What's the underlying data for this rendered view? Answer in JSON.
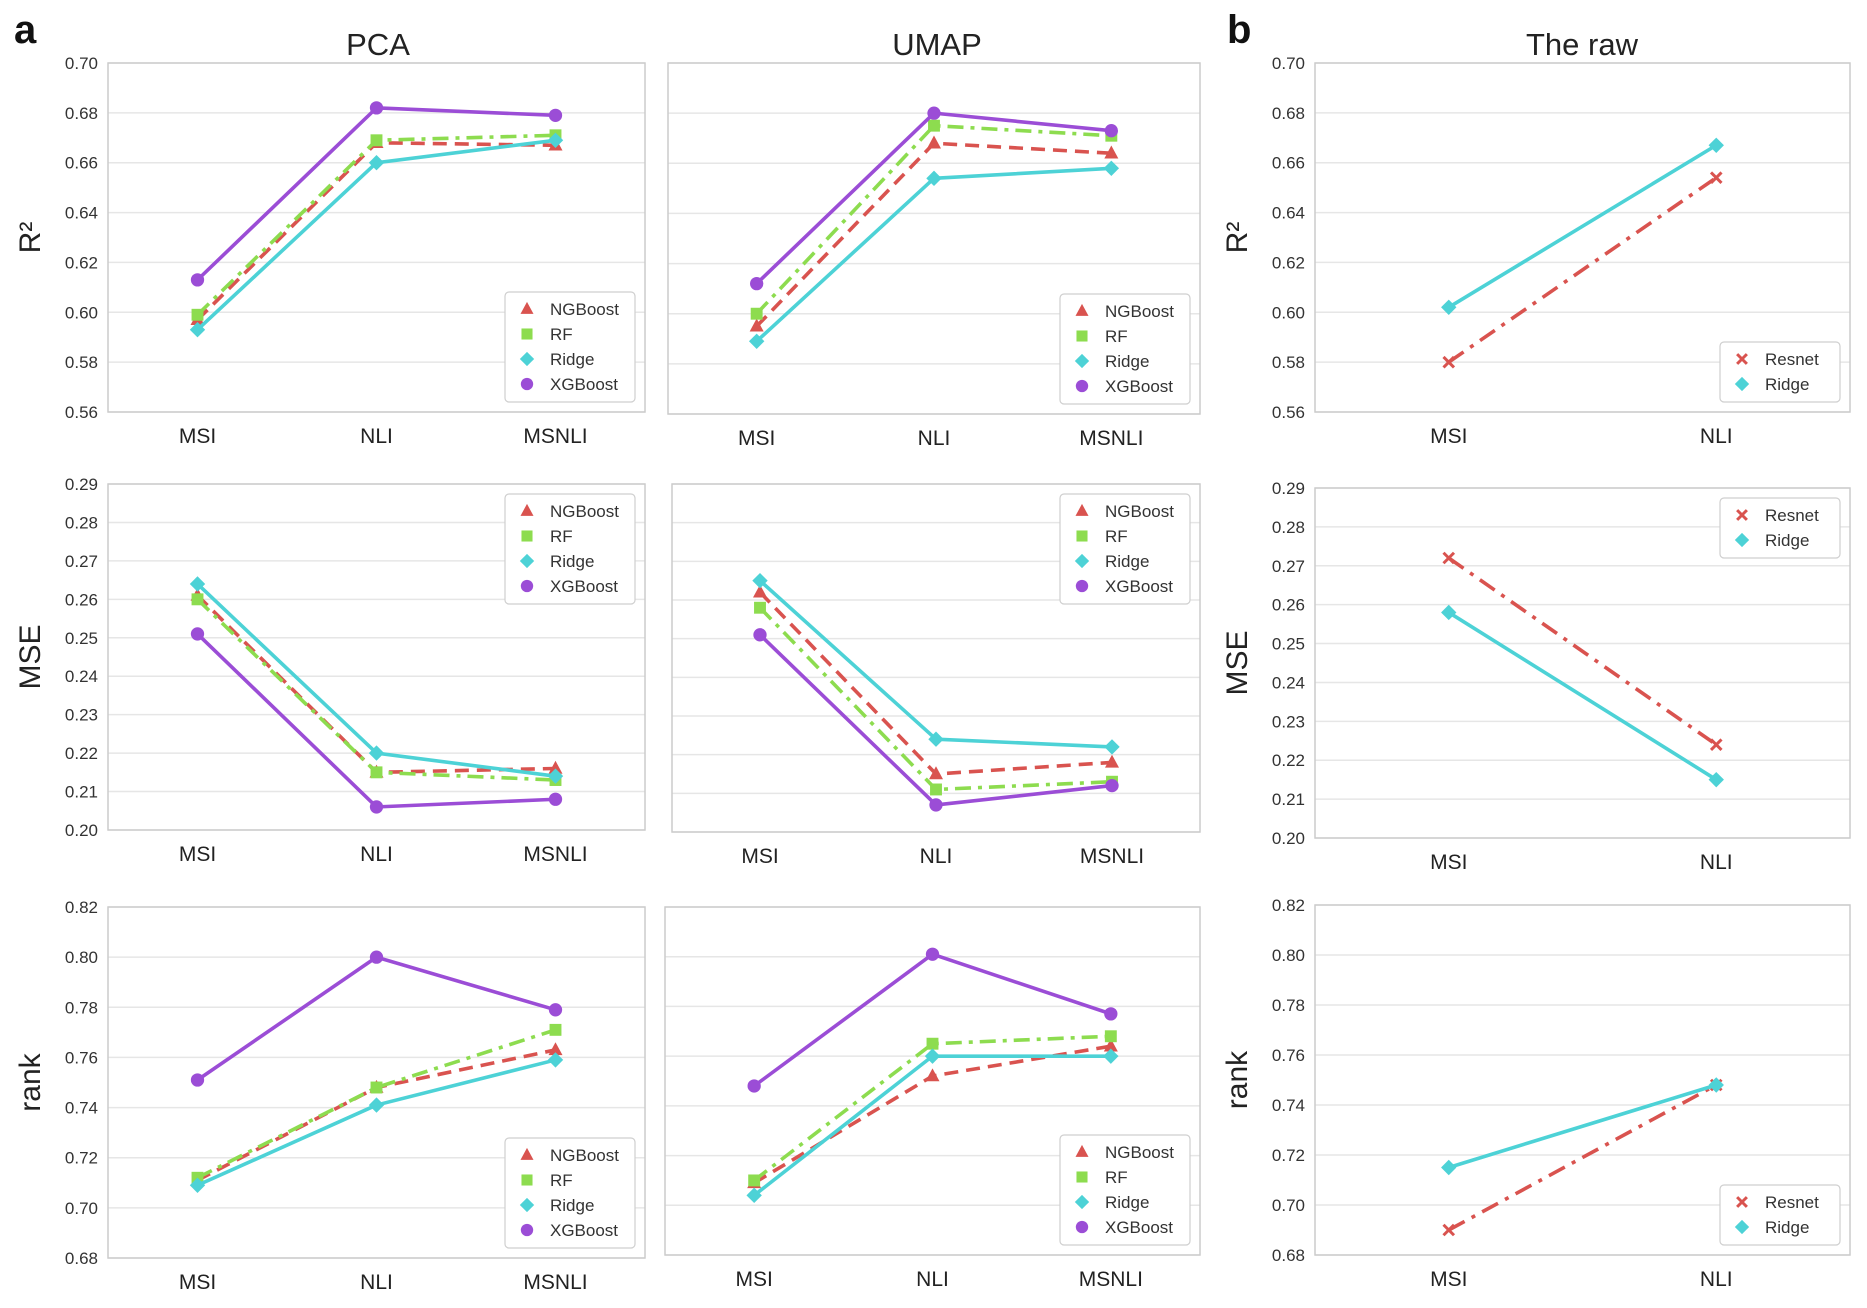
{
  "panel_labels": [
    "a",
    "b"
  ],
  "column_titles": [
    "PCA",
    "UMAP",
    "The raw"
  ],
  "colors": {
    "NGBoost": "#d9534f",
    "RF": "#8ddc4f",
    "Ridge": "#4dd2d6",
    "XGBoost": "#9b4dd6",
    "Resnet": "#d9534f",
    "grid": "#e6e6e6",
    "frame": "#cccccc"
  },
  "chart_data": [
    {
      "type": "line",
      "panel": "a",
      "column": "PCA",
      "ylabel": "R²",
      "categories": [
        "MSI",
        "NLI",
        "MSNLI"
      ],
      "yticks": [
        "0.56",
        "0.58",
        "0.60",
        "0.62",
        "0.64",
        "0.66",
        "0.68",
        "0.70"
      ],
      "ylim": [
        0.56,
        0.7
      ],
      "legend": "bottom-right",
      "grid": true,
      "series": [
        {
          "name": "NGBoost",
          "values": [
            0.597,
            0.668,
            0.667
          ]
        },
        {
          "name": "RF",
          "values": [
            0.599,
            0.669,
            0.671
          ]
        },
        {
          "name": "Ridge",
          "values": [
            0.593,
            0.66,
            0.669
          ]
        },
        {
          "name": "XGBoost",
          "values": [
            0.613,
            0.682,
            0.679
          ]
        }
      ]
    },
    {
      "type": "line",
      "panel": "a",
      "column": "UMAP",
      "ylabel": "",
      "categories": [
        "MSI",
        "NLI",
        "MSNLI"
      ],
      "yticks": [],
      "ylim": [
        0.56,
        0.7
      ],
      "legend": "bottom-right",
      "grid": true,
      "series": [
        {
          "name": "NGBoost",
          "values": [
            0.595,
            0.668,
            0.664
          ]
        },
        {
          "name": "RF",
          "values": [
            0.6,
            0.675,
            0.671
          ]
        },
        {
          "name": "Ridge",
          "values": [
            0.589,
            0.654,
            0.658
          ]
        },
        {
          "name": "XGBoost",
          "values": [
            0.612,
            0.68,
            0.673
          ]
        }
      ]
    },
    {
      "type": "line",
      "panel": "b",
      "column": "The raw",
      "ylabel": "R²",
      "categories": [
        "MSI",
        "NLI"
      ],
      "yticks": [
        "0.56",
        "0.58",
        "0.60",
        "0.62",
        "0.64",
        "0.66",
        "0.68",
        "0.70"
      ],
      "ylim": [
        0.56,
        0.7
      ],
      "legend": "bottom-right",
      "grid": true,
      "series": [
        {
          "name": "Resnet",
          "values": [
            0.58,
            0.654
          ]
        },
        {
          "name": "Ridge",
          "values": [
            0.602,
            0.667
          ]
        }
      ]
    },
    {
      "type": "line",
      "panel": "a",
      "column": "PCA",
      "ylabel": "MSE",
      "categories": [
        "MSI",
        "NLI",
        "MSNLI"
      ],
      "yticks": [
        "0.20",
        "0.21",
        "0.22",
        "0.23",
        "0.24",
        "0.25",
        "0.26",
        "0.27",
        "0.28",
        "0.29"
      ],
      "ylim": [
        0.2,
        0.29
      ],
      "legend": "top-right",
      "grid": true,
      "series": [
        {
          "name": "NGBoost",
          "values": [
            0.261,
            0.215,
            0.216
          ]
        },
        {
          "name": "RF",
          "values": [
            0.26,
            0.215,
            0.213
          ]
        },
        {
          "name": "Ridge",
          "values": [
            0.264,
            0.22,
            0.214
          ]
        },
        {
          "name": "XGBoost",
          "values": [
            0.251,
            0.206,
            0.208
          ]
        }
      ]
    },
    {
      "type": "line",
      "panel": "a",
      "column": "UMAP",
      "ylabel": "",
      "categories": [
        "MSI",
        "NLI",
        "MSNLI"
      ],
      "yticks": [],
      "ylim": [
        0.2,
        0.29
      ],
      "legend": "top-right",
      "grid": true,
      "series": [
        {
          "name": "NGBoost",
          "values": [
            0.262,
            0.215,
            0.218
          ]
        },
        {
          "name": "RF",
          "values": [
            0.258,
            0.211,
            0.213
          ]
        },
        {
          "name": "Ridge",
          "values": [
            0.265,
            0.224,
            0.222
          ]
        },
        {
          "name": "XGBoost",
          "values": [
            0.251,
            0.207,
            0.212
          ]
        }
      ]
    },
    {
      "type": "line",
      "panel": "b",
      "column": "The raw",
      "ylabel": "MSE",
      "categories": [
        "MSI",
        "NLI"
      ],
      "yticks": [
        "0.20",
        "0.21",
        "0.22",
        "0.23",
        "0.24",
        "0.25",
        "0.26",
        "0.27",
        "0.28",
        "0.29"
      ],
      "ylim": [
        0.2,
        0.29
      ],
      "legend": "top-right",
      "grid": true,
      "series": [
        {
          "name": "Resnet",
          "values": [
            0.272,
            0.224
          ]
        },
        {
          "name": "Ridge",
          "values": [
            0.258,
            0.215
          ]
        }
      ]
    },
    {
      "type": "line",
      "panel": "a",
      "column": "PCA",
      "ylabel": "rank",
      "categories": [
        "MSI",
        "NLI",
        "MSNLI"
      ],
      "yticks": [
        "0.68",
        "0.70",
        "0.72",
        "0.74",
        "0.76",
        "0.78",
        "0.80",
        "0.82"
      ],
      "ylim": [
        0.68,
        0.82
      ],
      "legend": "bottom-right",
      "grid": true,
      "series": [
        {
          "name": "NGBoost",
          "values": [
            0.711,
            0.748,
            0.763
          ]
        },
        {
          "name": "RF",
          "values": [
            0.712,
            0.748,
            0.771
          ]
        },
        {
          "name": "Ridge",
          "values": [
            0.709,
            0.741,
            0.759
          ]
        },
        {
          "name": "XGBoost",
          "values": [
            0.751,
            0.8,
            0.779
          ]
        }
      ]
    },
    {
      "type": "line",
      "panel": "a",
      "column": "UMAP",
      "ylabel": "",
      "categories": [
        "MSI",
        "NLI",
        "MSNLI"
      ],
      "yticks": [],
      "ylim": [
        0.68,
        0.82
      ],
      "legend": "bottom-right",
      "grid": true,
      "series": [
        {
          "name": "NGBoost",
          "values": [
            0.709,
            0.752,
            0.764
          ]
        },
        {
          "name": "RF",
          "values": [
            0.71,
            0.765,
            0.768
          ]
        },
        {
          "name": "Ridge",
          "values": [
            0.704,
            0.76,
            0.76
          ]
        },
        {
          "name": "XGBoost",
          "values": [
            0.748,
            0.801,
            0.777
          ]
        }
      ]
    },
    {
      "type": "line",
      "panel": "b",
      "column": "The raw",
      "ylabel": "rank",
      "categories": [
        "MSI",
        "NLI"
      ],
      "yticks": [
        "0.68",
        "0.70",
        "0.72",
        "0.74",
        "0.76",
        "0.78",
        "0.80",
        "0.82"
      ],
      "ylim": [
        0.68,
        0.82
      ],
      "legend": "bottom-right",
      "grid": true,
      "series": [
        {
          "name": "Resnet",
          "values": [
            0.69,
            0.748
          ]
        },
        {
          "name": "Ridge",
          "values": [
            0.715,
            0.748
          ]
        }
      ]
    }
  ]
}
